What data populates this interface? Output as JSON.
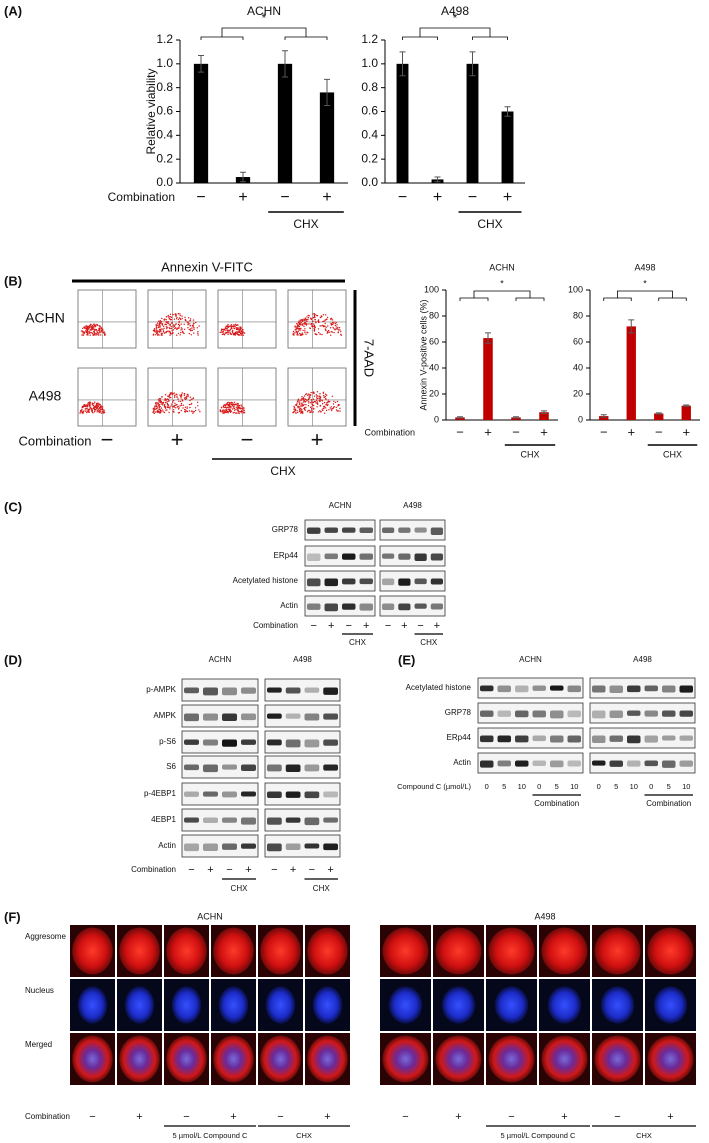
{
  "panels": {
    "a": "(A)",
    "b": "(B)",
    "c": "(C)",
    "d": "(D)",
    "e": "(E)",
    "f": "(F)"
  },
  "chart_data": [
    {
      "type": "bar",
      "title": "ACHN",
      "ylabel": "Relative viability",
      "row_label": "Combination",
      "categories": [
        "−",
        "+",
        "−",
        "+"
      ],
      "values": [
        1.0,
        0.05,
        1.0,
        0.76
      ],
      "errors": [
        0.07,
        0.04,
        0.11,
        0.11
      ],
      "color": "#000000",
      "ylim": [
        0,
        1.2
      ],
      "yticks": [
        {
          "value": 0,
          "label": "0.0"
        },
        0.2,
        0.4,
        0.6,
        0.8,
        {
          "value": 1,
          "label": "1.0"
        },
        1.2
      ],
      "group_label": "CHX",
      "significance": "*"
    },
    {
      "type": "bar",
      "title": "A498",
      "categories": [
        "−",
        "+",
        "−",
        "+"
      ],
      "values": [
        1.0,
        0.03,
        1.0,
        0.6
      ],
      "errors": [
        0.1,
        0.02,
        0.1,
        0.04
      ],
      "color": "#000000",
      "ylim": [
        0,
        1.2
      ],
      "yticks": [
        {
          "value": 0,
          "label": "0.0"
        },
        0.2,
        0.4,
        0.6,
        0.8,
        {
          "value": 1,
          "label": "1.0"
        },
        1.2
      ],
      "group_label": "CHX",
      "significance": "*"
    },
    {
      "type": "bar",
      "title": "ACHN",
      "ylabel": "Annexin V-positive cells (%)",
      "row_label": "Combination",
      "categories": [
        "−",
        "+",
        "−",
        "+"
      ],
      "values": [
        2,
        63,
        2,
        6
      ],
      "errors": [
        0.5,
        4,
        0.5,
        1
      ],
      "color": "#c00000",
      "ylim": [
        0,
        100
      ],
      "yticks": [
        0,
        20,
        40,
        60,
        80,
        100
      ],
      "group_label": "CHX",
      "significance": "*"
    },
    {
      "type": "bar",
      "title": "A498",
      "categories": [
        "−",
        "+",
        "−",
        "+"
      ],
      "values": [
        3,
        72,
        5,
        11
      ],
      "errors": [
        1,
        5,
        0.5,
        0.5
      ],
      "color": "#c00000",
      "ylim": [
        0,
        100
      ],
      "yticks": [
        0,
        20,
        40,
        60,
        80,
        100
      ],
      "group_label": "CHX",
      "significance": "*"
    }
  ],
  "flow": {
    "header": "Annexin V-FITC",
    "side": "7-AAD",
    "rows": [
      "ACHN",
      "A498"
    ],
    "row_label": "Combination",
    "signs": [
      "−",
      "+",
      "−",
      "+"
    ],
    "group": "CHX"
  },
  "blot_c": {
    "titles": [
      "ACHN",
      "A498"
    ],
    "rows": [
      "GRP78",
      "ERp44",
      "Acetylated histone",
      "Actin"
    ],
    "row_label": "Combination",
    "signs": [
      "−",
      "+",
      "−",
      "+"
    ],
    "group": "CHX"
  },
  "blot_d": {
    "titles": [
      "ACHN",
      "A498"
    ],
    "rows": [
      "p-AMPK",
      "AMPK",
      "p-S6",
      "S6",
      "p-4EBP1",
      "4EBP1",
      "Actin"
    ],
    "row_label": "Combination",
    "signs": [
      "−",
      "+",
      "−",
      "+"
    ],
    "group": "CHX"
  },
  "blot_e": {
    "titles": [
      "ACHN",
      "A498"
    ],
    "rows": [
      "Acetylated histone",
      "GRP78",
      "ERp44",
      "Actin"
    ],
    "row_label": "Compound C (µmol/L)",
    "doses": [
      "0",
      "5",
      "10",
      "0",
      "5",
      "10"
    ],
    "group": "Combination"
  },
  "images_f": {
    "titles": [
      "ACHN",
      "A498"
    ],
    "rows": [
      "Aggresome",
      "Nucleus",
      "Merged"
    ],
    "row_label": "Combination",
    "signs": [
      "−",
      "+",
      "−",
      "+",
      "−",
      "+"
    ],
    "groups": [
      "5 µmol/L  Compound C",
      "CHX"
    ]
  }
}
